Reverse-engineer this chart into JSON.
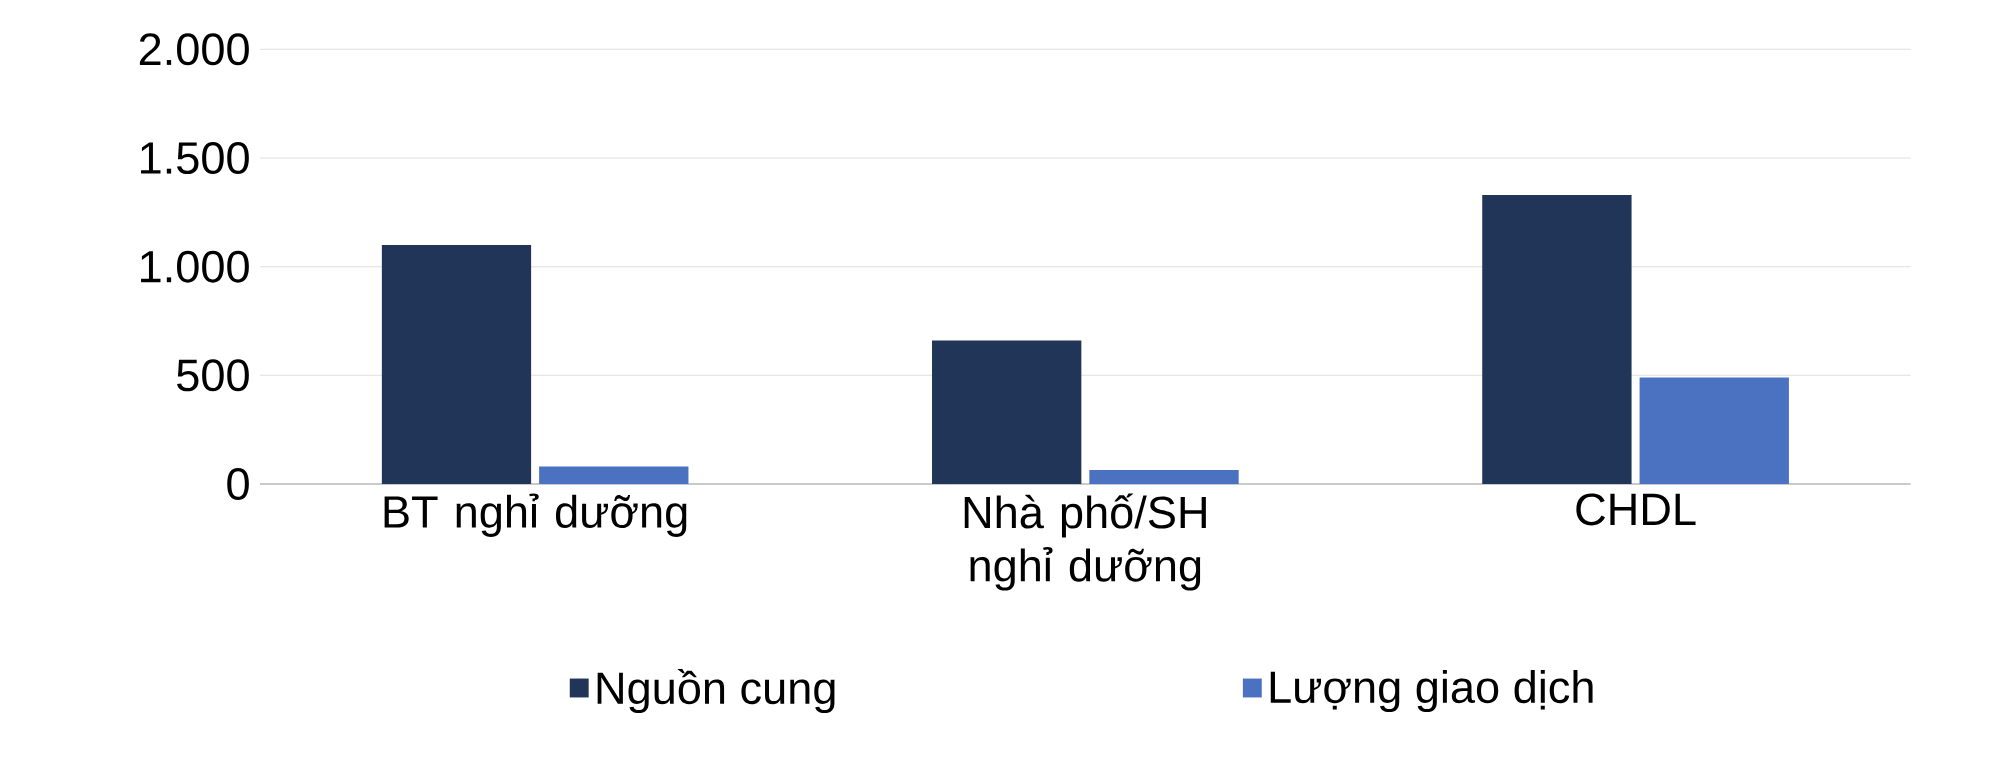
{
  "chart_data": {
    "type": "bar",
    "categories": [
      "BT nghỉ dưỡng",
      "Nhà phố/SH nghỉ dưỡng",
      "CHDL"
    ],
    "series": [
      {
        "name": "Nguồn cung",
        "color": "#203558",
        "values": [
          1100,
          660,
          1330
        ]
      },
      {
        "name": "Lượng giao dịch",
        "color": "#4a72c0",
        "values": [
          80,
          65,
          490
        ]
      }
    ],
    "ylim": [
      0,
      2000
    ],
    "yticks": [
      0,
      500,
      {
        "value": 1000,
        "label": "1.000"
      },
      {
        "value": 1500,
        "label": "1.500"
      },
      {
        "value": 2000,
        "label": "2.000"
      }
    ],
    "grid": "y",
    "legend": "bottom"
  }
}
